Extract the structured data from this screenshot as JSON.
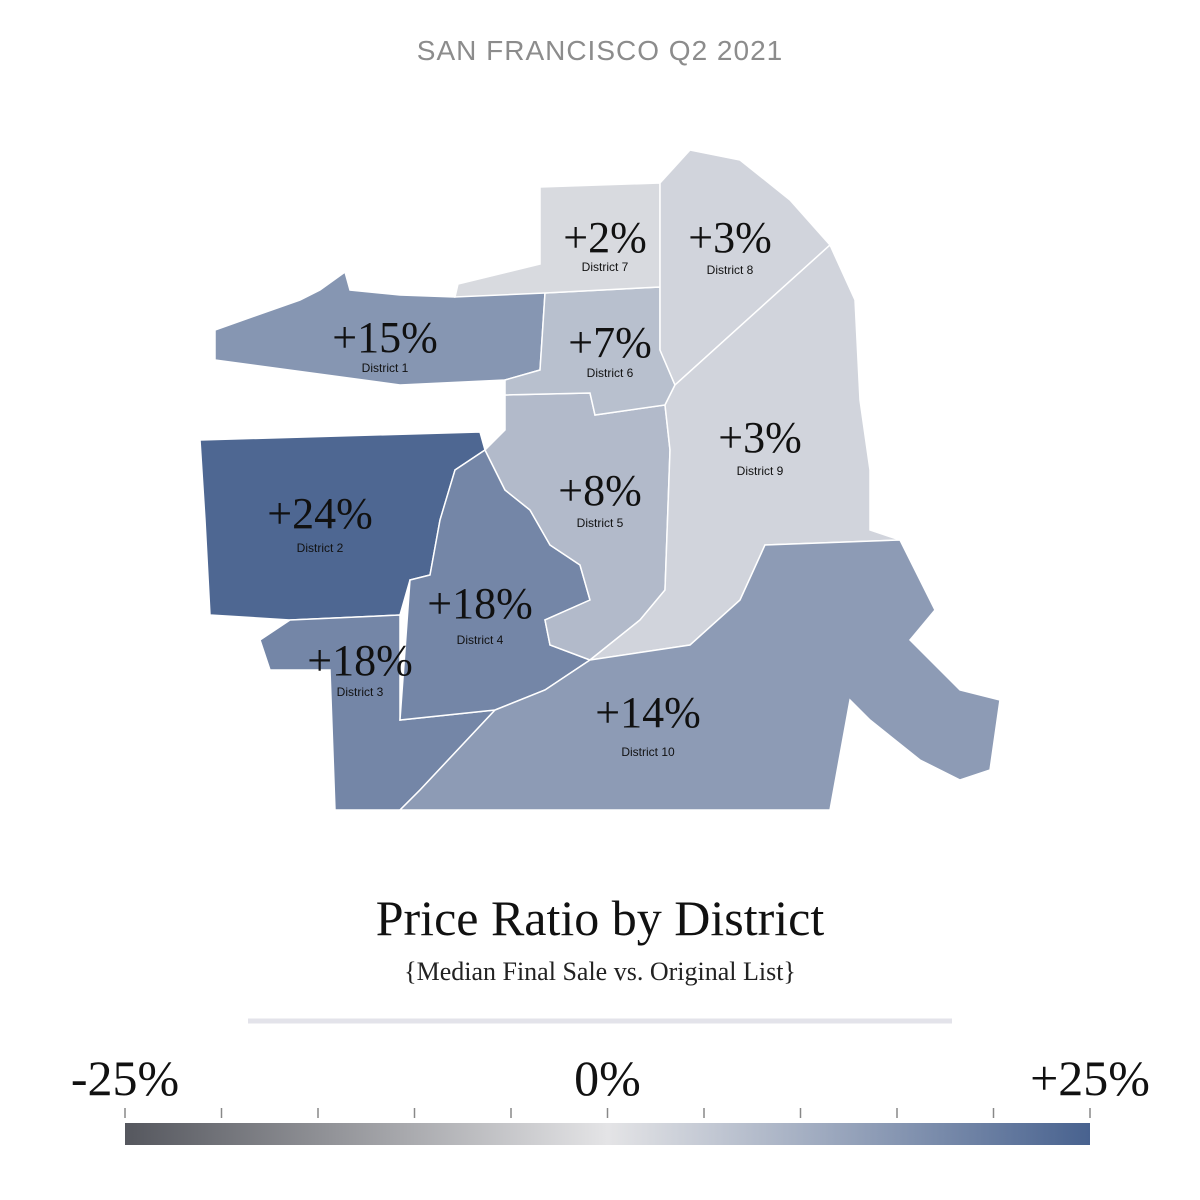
{
  "chart_data": {
    "type": "choropleth",
    "header": "SAN FRANCISCO Q2 2021",
    "title": "Price Ratio by District",
    "subtitle": "{Median Final Sale vs. Original List}",
    "categories": [
      "District 1",
      "District 2",
      "District 3",
      "District 4",
      "District 5",
      "District 6",
      "District 7",
      "District 8",
      "District 9",
      "District 10"
    ],
    "values": [
      15,
      24,
      18,
      18,
      8,
      7,
      2,
      3,
      3,
      14
    ],
    "value_labels": [
      "+15%",
      "+24%",
      "+18%",
      "+18%",
      "+8%",
      "+7%",
      "+2%",
      "+3%",
      "+3%",
      "+14%"
    ],
    "clim": [
      -25,
      25
    ],
    "colorscale": [
      "#55575e",
      "#e4e4e6",
      "#48628f"
    ],
    "colorbar_ticks": [
      -25,
      -20,
      -15,
      -10,
      -5,
      0,
      5,
      10,
      15,
      20,
      25
    ],
    "colorbar_labels": [
      {
        "value": -25,
        "label": "-25%"
      },
      {
        "value": 0,
        "label": "0%"
      },
      {
        "value": 25,
        "label": "+25%"
      }
    ]
  }
}
